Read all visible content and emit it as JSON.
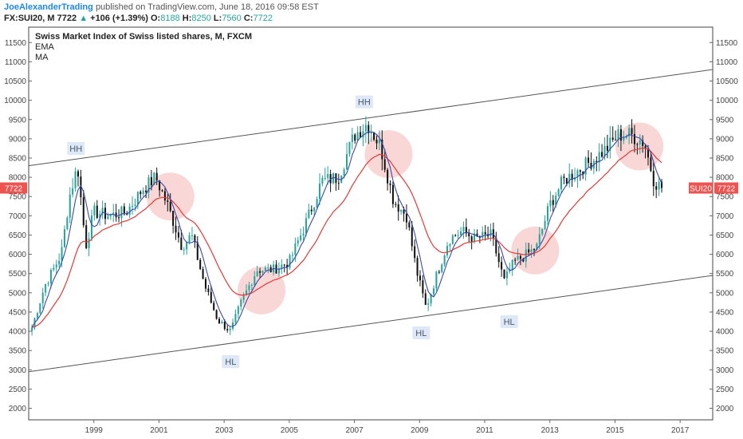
{
  "header": {
    "author": "JoeAlexanderTrading",
    "published": "published on TradingView.com, June 18, 2016 09:58 EST"
  },
  "symbol_line": {
    "symbol": "FX:SUI20, M",
    "last": "7722",
    "arrow": "▲",
    "change": "+106 (+1.39%)",
    "o_label": "O:",
    "o_value": "8188",
    "h_label": "H:",
    "h_value": "8250",
    "l_label": "L:",
    "l_value": "7560",
    "c_label": "C:",
    "c_value": "7722"
  },
  "colors": {
    "ema": "#e53935",
    "ma": "#3949ab",
    "up": "#26a69a",
    "down": "#111111",
    "channel": "#555555",
    "circle": "#f4b6b6",
    "label_bg": "#dfe8f6",
    "price_tag": "#ef5350"
  },
  "chart_data": {
    "type": "candlestick",
    "title": "Swiss Market Index of Swiss listed shares, M, FXCM",
    "legend": [
      "EMA",
      "MA"
    ],
    "timeframe": "monthly",
    "x_ticks": [
      "1999",
      "2001",
      "2003",
      "2005",
      "2007",
      "2009",
      "2011",
      "2013",
      "2015",
      "2017"
    ],
    "y_ticks": [
      2000,
      2500,
      3000,
      3500,
      4000,
      4500,
      5000,
      5500,
      6000,
      6500,
      7000,
      7500,
      8000,
      8500,
      9000,
      9500,
      10000,
      10500,
      11000,
      11500
    ],
    "xlim": [
      1997.0,
      2018.0
    ],
    "ylim": [
      1700,
      11900
    ],
    "last_price": 7722,
    "price_tag_label": "SUI20",
    "left_price_tag": "7722",
    "right_price_tag": "7722",
    "price_path": [
      [
        1997.1,
        4100
      ],
      [
        1997.5,
        5200
      ],
      [
        1998.0,
        6000
      ],
      [
        1998.25,
        7500
      ],
      [
        1998.5,
        8300
      ],
      [
        1998.75,
        6200
      ],
      [
        1999.0,
        7100
      ],
      [
        1999.5,
        7000
      ],
      [
        2000.0,
        7100
      ],
      [
        2000.5,
        7700
      ],
      [
        2000.9,
        8000
      ],
      [
        2001.3,
        7200
      ],
      [
        2001.7,
        6200
      ],
      [
        2002.0,
        6500
      ],
      [
        2002.4,
        5200
      ],
      [
        2002.8,
        4300
      ],
      [
        2003.2,
        4000
      ],
      [
        2003.5,
        4700
      ],
      [
        2004.0,
        5600
      ],
      [
        2004.5,
        5600
      ],
      [
        2005.0,
        5800
      ],
      [
        2005.5,
        6800
      ],
      [
        2006.0,
        7900
      ],
      [
        2006.5,
        8000
      ],
      [
        2007.0,
        9100
      ],
      [
        2007.4,
        9400
      ],
      [
        2007.8,
        8800
      ],
      [
        2008.2,
        7400
      ],
      [
        2008.6,
        7000
      ],
      [
        2008.9,
        5600
      ],
      [
        2009.2,
        4600
      ],
      [
        2009.5,
        5400
      ],
      [
        2009.9,
        6400
      ],
      [
        2010.3,
        6600
      ],
      [
        2010.7,
        6400
      ],
      [
        2011.2,
        6500
      ],
      [
        2011.6,
        5300
      ],
      [
        2011.9,
        5800
      ],
      [
        2012.3,
        6000
      ],
      [
        2012.6,
        6200
      ],
      [
        2013.0,
        7300
      ],
      [
        2013.4,
        7900
      ],
      [
        2013.9,
        8200
      ],
      [
        2014.4,
        8500
      ],
      [
        2014.8,
        8800
      ],
      [
        2015.1,
        9100
      ],
      [
        2015.5,
        9100
      ],
      [
        2015.9,
        8900
      ],
      [
        2016.2,
        7900
      ],
      [
        2016.45,
        7722
      ]
    ],
    "channel_lines": [
      {
        "x": [
          1997.0,
          2018.0
        ],
        "y": [
          8300,
          10800
        ]
      },
      {
        "x": [
          1997.0,
          2018.0
        ],
        "y": [
          2950,
          5450
        ]
      }
    ],
    "annotations": [
      {
        "label": "HH",
        "x": 1998.45,
        "y": 8750
      },
      {
        "label": "HH",
        "x": 2007.3,
        "y": 9960
      },
      {
        "label": "HL",
        "x": 2003.2,
        "y": 3210
      },
      {
        "label": "HL",
        "x": 2009.05,
        "y": 3960
      },
      {
        "label": "HL",
        "x": 2011.75,
        "y": 4250
      }
    ],
    "highlight_circles": [
      {
        "x": 2001.35,
        "y": 7500
      },
      {
        "x": 2004.15,
        "y": 5060
      },
      {
        "x": 2008.05,
        "y": 8600
      },
      {
        "x": 2012.55,
        "y": 6100
      },
      {
        "x": 2015.75,
        "y": 8800
      }
    ]
  }
}
